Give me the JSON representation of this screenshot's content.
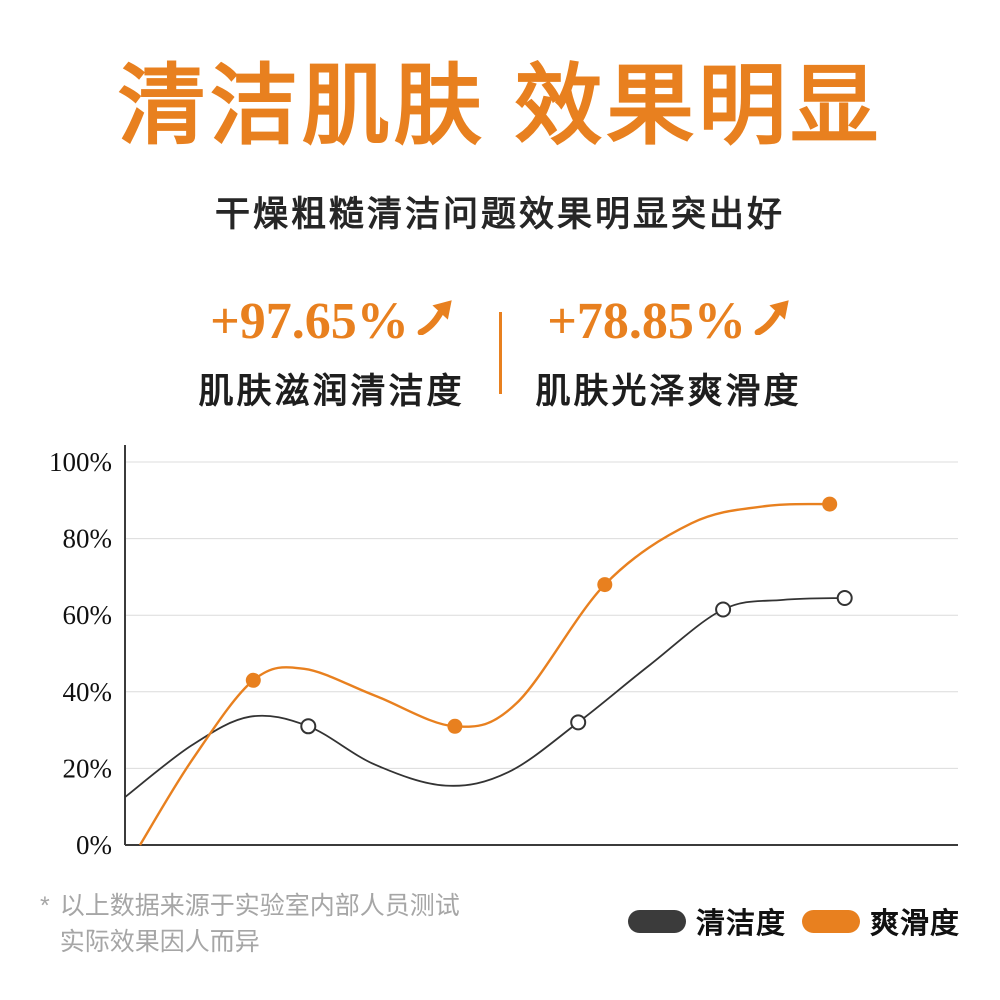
{
  "header": {
    "title": "清洁肌肤 效果明显",
    "subtitle": "干燥粗糙清洁问题效果明显突出好"
  },
  "stats": [
    {
      "value": "+97.65%",
      "label": "肌肤滋润清洁度",
      "arrow_icon": "up-right-arrow"
    },
    {
      "value": "+78.85%",
      "label": "肌肤光泽爽滑度",
      "arrow_icon": "up-right-arrow"
    }
  ],
  "footnote": {
    "mark": "*",
    "line1": "以上数据来源于实验室内部人员测试",
    "line2": "实际效果因人而异"
  },
  "legend": [
    {
      "label": "清洁度",
      "color": "#3B3B3B"
    },
    {
      "label": "爽滑度",
      "color": "#E8801F"
    }
  ],
  "colors": {
    "accent_orange": "#E8801F",
    "dark": "#3B3B3B",
    "grid_line": "#DCDCDC",
    "footnote_gray": "#A6A6A6"
  },
  "chart_data": {
    "type": "line",
    "title": "",
    "xlabel": "",
    "ylabel": "",
    "ylim": [
      0,
      100
    ],
    "grid": true,
    "legend_position": "bottom-right",
    "yticks": [
      {
        "label": "0%",
        "value": 0
      },
      {
        "label": "20%",
        "value": 20
      },
      {
        "label": "40%",
        "value": 40
      },
      {
        "label": "60%",
        "value": 60
      },
      {
        "label": "80%",
        "value": 80
      },
      {
        "label": "100%",
        "value": 100
      }
    ],
    "series": [
      {
        "name": "清洁度",
        "color": "#333333",
        "marker_style": "open",
        "curve_points": [
          [
            0,
            12.5
          ],
          [
            8,
            26
          ],
          [
            15,
            33.5
          ],
          [
            22,
            31
          ],
          [
            30,
            21
          ],
          [
            38.5,
            15.5
          ],
          [
            46,
            19
          ],
          [
            54.4,
            32
          ],
          [
            63,
            47
          ],
          [
            71.8,
            61.5
          ],
          [
            79,
            64
          ],
          [
            86.4,
            64.5
          ]
        ],
        "marker_points": [
          [
            22,
            31
          ],
          [
            54.4,
            32
          ],
          [
            71.8,
            61.5
          ],
          [
            86.4,
            64.5
          ]
        ]
      },
      {
        "name": "爽滑度",
        "color": "#E8801F",
        "marker_style": "filled",
        "curve_points": [
          [
            1.8,
            0
          ],
          [
            8,
            22
          ],
          [
            15.4,
            43
          ],
          [
            21.5,
            46
          ],
          [
            30,
            39
          ],
          [
            39.6,
            31
          ],
          [
            47,
            37
          ],
          [
            57.6,
            68
          ],
          [
            68,
            84
          ],
          [
            77,
            88.5
          ],
          [
            84.6,
            89
          ]
        ],
        "marker_points": [
          [
            15.4,
            43
          ],
          [
            39.6,
            31
          ],
          [
            57.6,
            68
          ],
          [
            84.6,
            89
          ]
        ]
      }
    ]
  }
}
